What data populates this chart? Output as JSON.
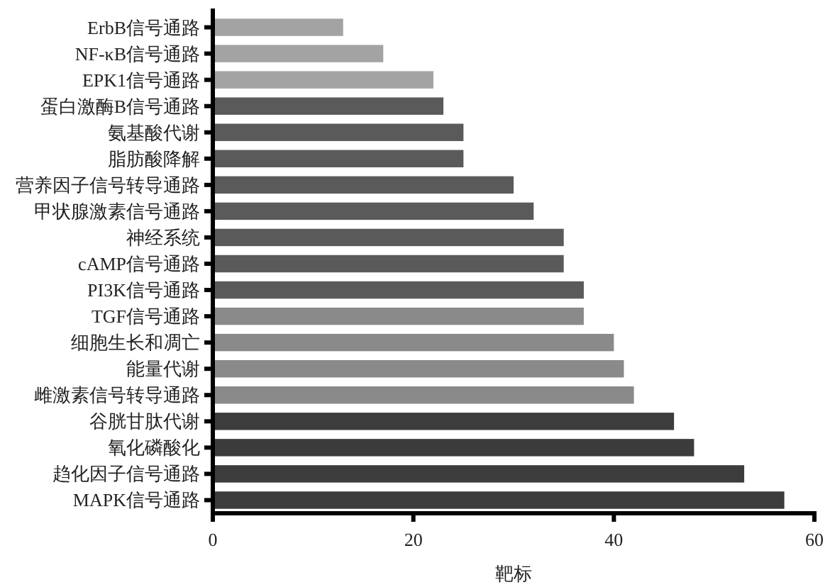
{
  "chart_data": {
    "type": "bar",
    "orientation": "horizontal",
    "xlabel": "靶标",
    "categories": [
      "ErbB信号通路",
      "NF-κB信号通路",
      "EPK1信号通路",
      "蛋白激酶B信号通路",
      "氨基酸代谢",
      "脂肪酸降解",
      "营养因子信号转导通路",
      "甲状腺激素信号通路",
      "神经系统",
      "cAMP信号通路",
      "PI3K信号通路",
      "TGF信号通路",
      "细胞生长和凋亡",
      "能量代谢",
      "雌激素信号转导通路",
      "谷胱甘肽代谢",
      "氧化磷酸化",
      "趋化因子信号通路",
      "MAPK信号通路"
    ],
    "values": [
      13,
      17,
      22,
      23,
      25,
      25,
      30,
      32,
      35,
      35,
      37,
      37,
      40,
      41,
      42,
      46,
      48,
      53,
      57
    ],
    "colors": [
      "#a3a3a3",
      "#a3a3a3",
      "#a3a3a3",
      "#5a5a5a",
      "#5a5a5a",
      "#5a5a5a",
      "#5a5a5a",
      "#5a5a5a",
      "#5a5a5a",
      "#5a5a5a",
      "#5a5a5a",
      "#8a8a8a",
      "#8a8a8a",
      "#8a8a8a",
      "#8a8a8a",
      "#3c3c3c",
      "#3c3c3c",
      "#3c3c3c",
      "#3c3c3c"
    ],
    "xlim": [
      0,
      60
    ],
    "xticks": [
      0,
      20,
      40,
      60
    ],
    "grid": false
  }
}
